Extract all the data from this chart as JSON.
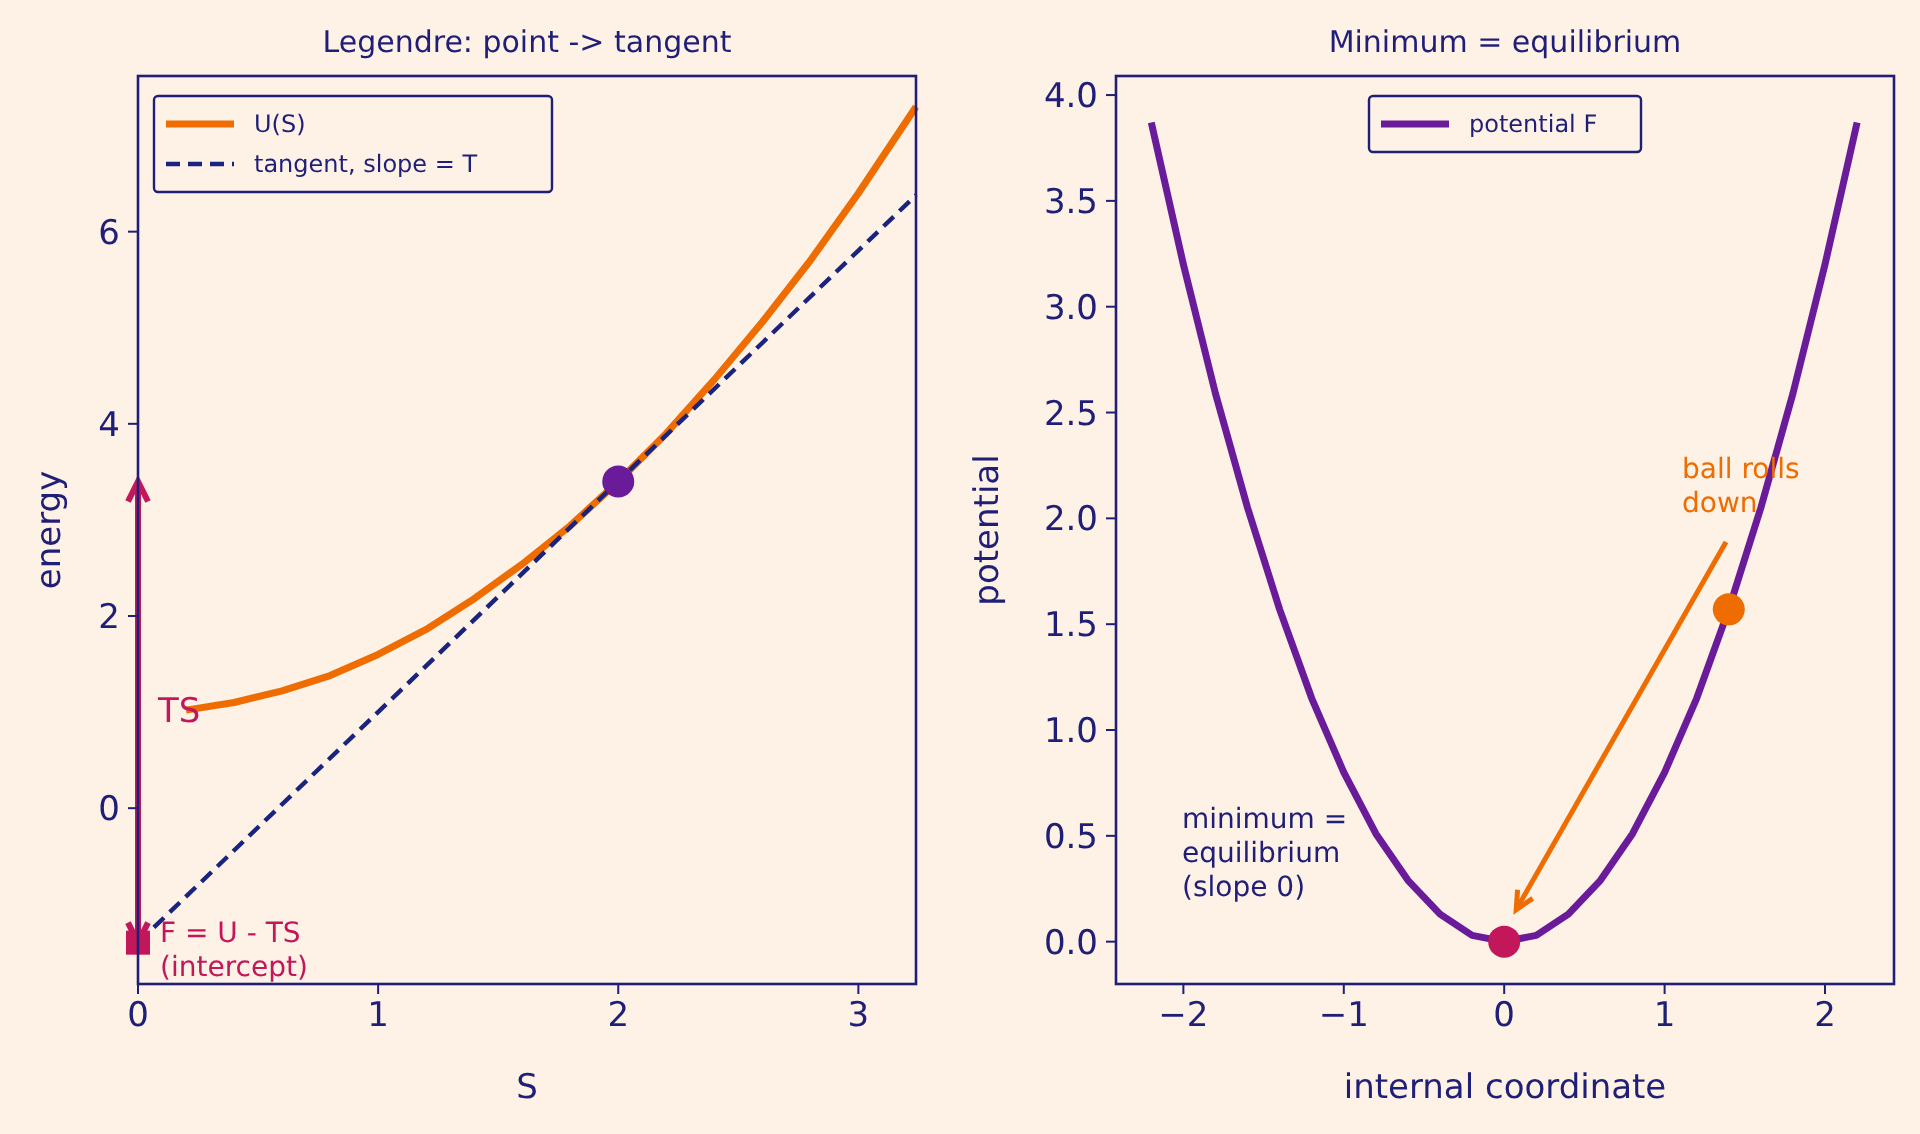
{
  "chart_data": [
    {
      "type": "line",
      "title": "Legendre: point -> tangent",
      "xlabel": "S",
      "ylabel": "energy",
      "xlim": [
        0,
        3.24
      ],
      "ylim": [
        -1.83,
        7.62
      ],
      "xticks": [
        0,
        1,
        2,
        3
      ],
      "yticks": [
        0,
        2,
        4,
        6
      ],
      "legend": "top left",
      "grid": false,
      "series": [
        {
          "name": "U(S)",
          "color": "#ef6c00",
          "x": [
            0.2,
            0.4,
            0.6,
            0.8,
            1.0,
            1.2,
            1.4,
            1.6,
            1.8,
            2.0,
            2.2,
            2.4,
            2.6,
            2.8,
            3.0,
            3.24
          ],
          "values": [
            1.02,
            1.1,
            1.22,
            1.38,
            1.6,
            1.86,
            2.18,
            2.54,
            2.94,
            3.4,
            3.9,
            4.46,
            5.06,
            5.7,
            6.4,
            7.3
          ]
        },
        {
          "name": "tangent, slope = T",
          "color": "#1a237e",
          "line_style": "dashed",
          "x": [
            0,
            3.24
          ],
          "values": [
            -1.4,
            6.38
          ]
        },
        {
          "type": "scatter",
          "color": "#6a1b9a",
          "marker": "circle",
          "x": [
            2
          ],
          "values": [
            3.4
          ]
        },
        {
          "type": "scatter",
          "color": "#c2185b",
          "marker": "square",
          "x": [
            0
          ],
          "values": [
            -1.4
          ]
        }
      ],
      "annotations": [
        "TS",
        "F = U - TS\n(intercept)"
      ]
    },
    {
      "type": "line",
      "title": "Minimum = equilibrium",
      "xlabel": "internal coordinate",
      "ylabel": "potential",
      "xlim": [
        -2.42,
        2.43
      ],
      "ylim": [
        -0.2,
        4.09
      ],
      "xticks": [
        {
          "value": -2,
          "label": "−2"
        },
        {
          "value": -1,
          "label": "−1"
        },
        0,
        1,
        2
      ],
      "yticks": [
        {
          "value": 0,
          "label": "0.0"
        },
        0.5,
        {
          "value": 1,
          "label": "1.0"
        },
        1.5,
        {
          "value": 2,
          "label": "2.0"
        },
        2.5,
        {
          "value": 3,
          "label": "3.0"
        },
        3.5,
        {
          "value": 4,
          "label": "4.0"
        }
      ],
      "legend": "top",
      "grid": false,
      "series": [
        {
          "name": "potential F",
          "color": "#6a1b9a",
          "x": [
            -2.2,
            -2.0,
            -1.8,
            -1.6,
            -1.4,
            -1.2,
            -1.0,
            -0.8,
            -0.6,
            -0.4,
            -0.2,
            0,
            0.2,
            0.4,
            0.6,
            0.8,
            1.0,
            1.2,
            1.4,
            1.6,
            1.8,
            2.0,
            2.2
          ],
          "values": [
            3.87,
            3.2,
            2.59,
            2.05,
            1.57,
            1.15,
            0.8,
            0.51,
            0.29,
            0.13,
            0.03,
            0,
            0.03,
            0.13,
            0.29,
            0.51,
            0.8,
            1.15,
            1.57,
            2.05,
            2.59,
            3.2,
            3.87
          ]
        },
        {
          "type": "scatter",
          "color": "#c2185b",
          "marker": "circle",
          "x": [
            0
          ],
          "values": [
            0
          ]
        },
        {
          "type": "scatter",
          "color": "#ef6c00",
          "marker": "circle",
          "x": [
            1.4
          ],
          "values": [
            1.57
          ]
        }
      ],
      "annotations": [
        "ball rolls\ndown",
        "minimum =\nequilibrium\n(slope 0)"
      ]
    }
  ]
}
